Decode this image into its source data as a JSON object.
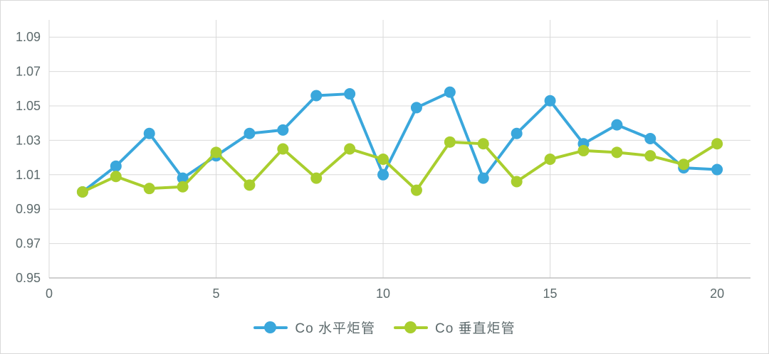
{
  "frame": {
    "background": "#ffffff",
    "border_color": "#d9d9d9"
  },
  "chart_data": {
    "type": "line",
    "title": "",
    "xlabel": "",
    "ylabel": "",
    "x": [
      1,
      2,
      3,
      4,
      5,
      6,
      7,
      8,
      9,
      10,
      11,
      12,
      13,
      14,
      15,
      16,
      17,
      18,
      19,
      20
    ],
    "series": [
      {
        "name": "Co 水平炬管",
        "color": "#3aa7dc",
        "marker": "circle",
        "values": [
          1.0,
          1.015,
          1.034,
          1.008,
          1.021,
          1.034,
          1.036,
          1.056,
          1.057,
          1.01,
          1.049,
          1.058,
          1.008,
          1.034,
          1.053,
          1.028,
          1.039,
          1.031,
          1.014,
          1.013
        ]
      },
      {
        "name": "Co 垂直炬管",
        "color": "#a9ce2e",
        "marker": "circle",
        "values": [
          1.0,
          1.009,
          1.002,
          1.003,
          1.023,
          1.004,
          1.025,
          1.008,
          1.025,
          1.019,
          1.001,
          1.029,
          1.028,
          1.006,
          1.019,
          1.024,
          1.023,
          1.021,
          1.016,
          1.028
        ]
      }
    ],
    "xlim": [
      0,
      21
    ],
    "ylim": [
      0.95,
      1.1
    ],
    "x_ticks": [
      0,
      5,
      10,
      15,
      20
    ],
    "y_ticks": [
      0.95,
      0.97,
      0.99,
      1.01,
      1.03,
      1.05,
      1.07,
      1.09
    ],
    "y_tick_decimals": 2,
    "grid": true,
    "gridline_color": "#d9d9d9",
    "axis_line_color": "#bfbfbf",
    "tick_label_color": "#5d6a6c",
    "legend_position": "bottom"
  },
  "legend": {
    "items": [
      {
        "label": "Co 水平炬管",
        "color": "#3aa7dc"
      },
      {
        "label": "Co 垂直炬管",
        "color": "#a9ce2e"
      }
    ]
  }
}
